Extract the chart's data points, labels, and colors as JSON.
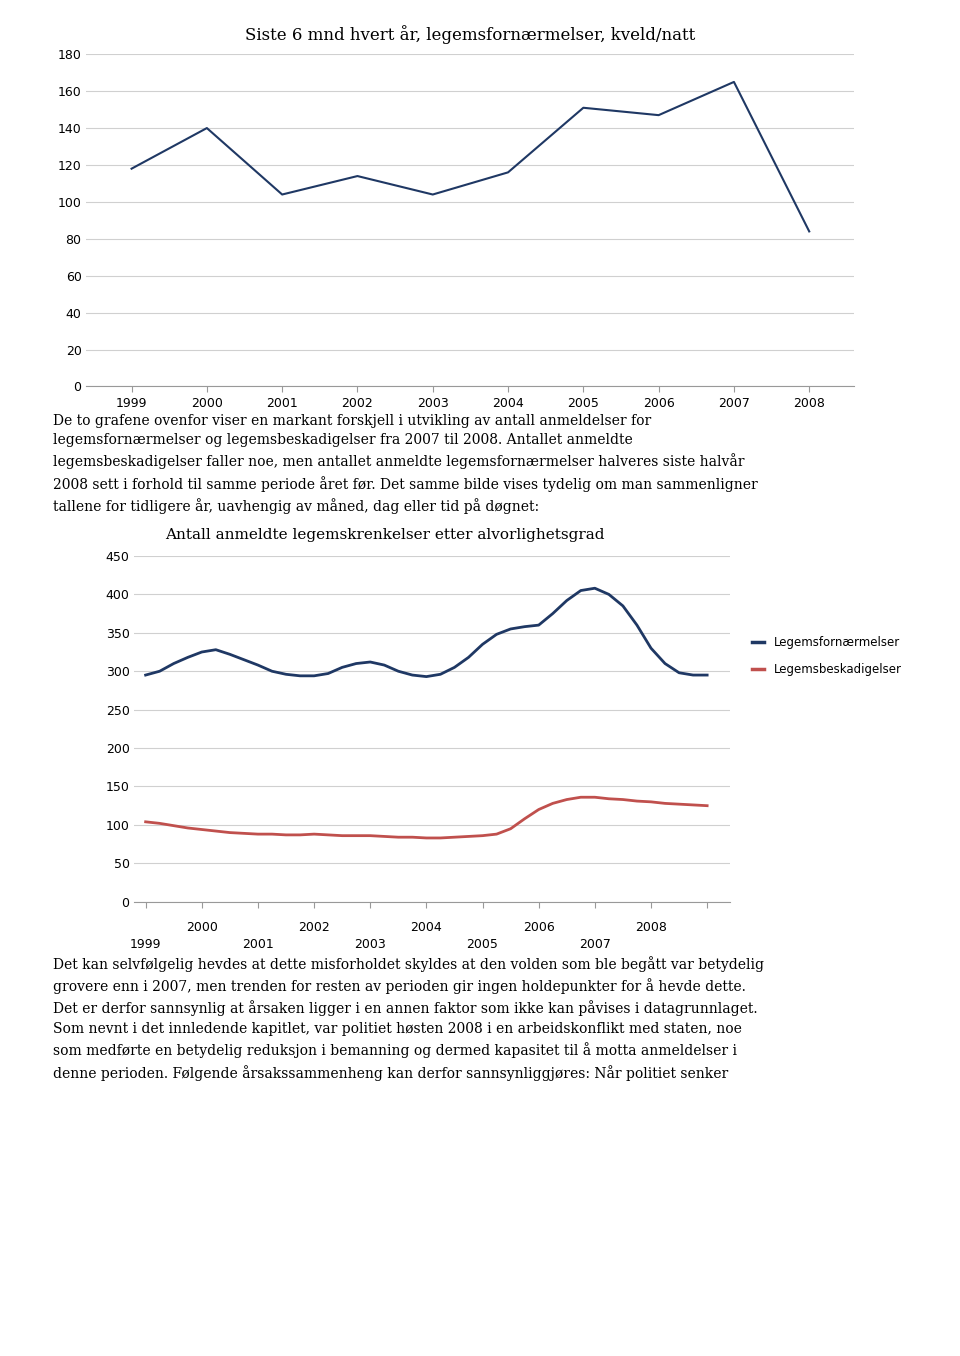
{
  "chart1_title": "Siste 6 mnd hvert år, legemsfornærmelser, kveld/natt",
  "chart1_x": [
    1999,
    2000,
    2001,
    2002,
    2003,
    2004,
    2005,
    2006,
    2007,
    2008
  ],
  "chart1_y": [
    118,
    140,
    104,
    114,
    104,
    116,
    151,
    147,
    165,
    84
  ],
  "chart1_color": "#1F3864",
  "chart1_ylim": [
    0,
    180
  ],
  "chart1_yticks": [
    0,
    20,
    40,
    60,
    80,
    100,
    120,
    140,
    160,
    180
  ],
  "chart2_title": "Antall anmeldte legemskrenkelser etter alvorlighetsgrad",
  "chart2_x_blue": [
    1999.0,
    1999.25,
    1999.5,
    1999.75,
    2000.0,
    2000.25,
    2000.5,
    2000.75,
    2001.0,
    2001.25,
    2001.5,
    2001.75,
    2002.0,
    2002.25,
    2002.5,
    2002.75,
    2003.0,
    2003.25,
    2003.5,
    2003.75,
    2004.0,
    2004.25,
    2004.5,
    2004.75,
    2005.0,
    2005.25,
    2005.5,
    2005.75,
    2006.0,
    2006.25,
    2006.5,
    2006.75,
    2007.0,
    2007.25,
    2007.5,
    2007.75,
    2008.0,
    2008.25,
    2008.5,
    2008.75,
    2009.0
  ],
  "chart2_y_blue": [
    295,
    300,
    310,
    318,
    325,
    328,
    322,
    315,
    308,
    300,
    296,
    294,
    294,
    297,
    305,
    310,
    312,
    308,
    300,
    295,
    293,
    296,
    305,
    318,
    335,
    348,
    355,
    358,
    360,
    375,
    392,
    405,
    408,
    400,
    385,
    360,
    330,
    310,
    298,
    295,
    295
  ],
  "chart2_y_orange": [
    104,
    102,
    99,
    96,
    94,
    92,
    90,
    89,
    88,
    88,
    87,
    87,
    88,
    87,
    86,
    86,
    86,
    85,
    84,
    84,
    83,
    83,
    84,
    85,
    86,
    88,
    95,
    108,
    120,
    128,
    133,
    136,
    136,
    134,
    133,
    131,
    130,
    128,
    127,
    126,
    125
  ],
  "chart2_color_blue": "#1F3864",
  "chart2_color_orange": "#C0504D",
  "chart2_ylim": [
    0,
    450
  ],
  "chart2_yticks": [
    0,
    50,
    100,
    150,
    200,
    250,
    300,
    350,
    400,
    450
  ],
  "text_paragraph_lines": [
    "De to grafene ovenfor viser en markant forskjell i utvikling av antall anmeldelser for",
    "legemsfornærmelser og legemsbeskadigelser fra 2007 til 2008. Antallet anmeldte",
    "legemsbeskadigelser faller noe, men antallet anmeldte legemsfornærmelser halveres siste halvår",
    "2008 sett i forhold til samme periode året før. Det samme bilde vises tydelig om man sammenligner",
    "tallene for tidligere år, uavhengig av måned, dag eller tid på døgnet:"
  ],
  "text_bottom_lines": [
    "Det kan selvfølgelig hevdes at dette misforholdet skyldes at den volden som ble begått var betydelig",
    "grovere enn i 2007, men trenden for resten av perioden gir ingen holdepunkter for å hevde dette.",
    "Det er derfor sannsynlig at årsaken ligger i en annen faktor som ikke kan påvises i datagrunnlaget.",
    "Som nevnt i det innledende kapitlet, var politiet høsten 2008 i en arbeidskonflikt med staten, noe",
    "som medførte en betydelig reduksjon i bemanning og dermed kapasitet til å motta anmeldelser i",
    "denne perioden. Følgende årsakssammenheng kan derfor sannsynliggjøres: Når politiet senker"
  ],
  "background_color": "#ffffff",
  "grid_color": "#d0d0d0",
  "legend_label_blue": "Legemsfornærmelser",
  "legend_label_orange": "Legemsbeskadigelser"
}
